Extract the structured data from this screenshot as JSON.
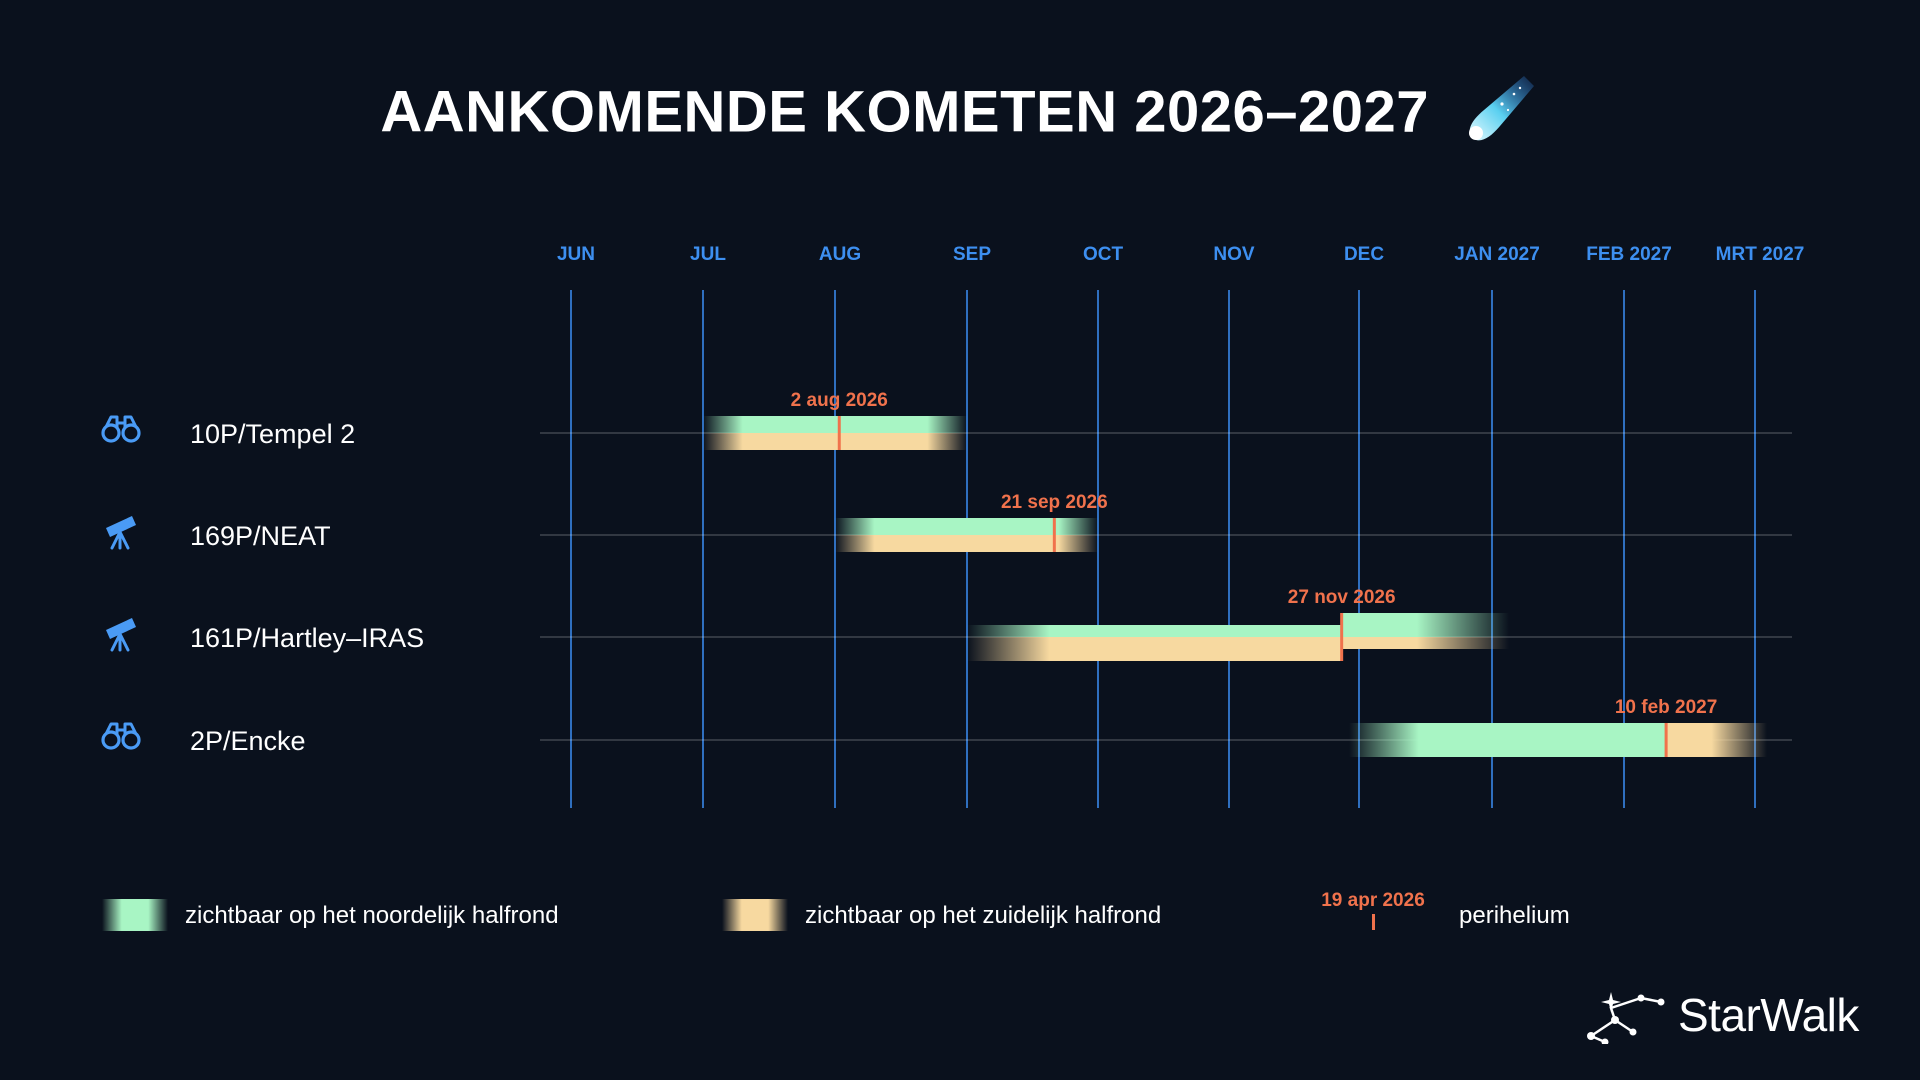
{
  "title": "AANKOMENDE KOMETEN 2026–2027",
  "chart_data": {
    "type": "gantt",
    "title": "AANKOMENDE KOMETEN 2026–2027",
    "x_axis": {
      "ticks": [
        "JUN",
        "JUL",
        "AUG",
        "SEP",
        "OCT",
        "NOV",
        "DEC",
        "JAN 2027",
        "FEB 2027",
        "MRT 2027"
      ],
      "range": [
        "2026-06-01",
        "2027-03-01"
      ],
      "position": "top"
    },
    "comets": [
      {
        "name": "10P/Tempel 2",
        "instrument": "binoculars-icon",
        "north": [
          "2026-07-01",
          "2026-09-01"
        ],
        "south": [
          "2026-07-01",
          "2026-09-01"
        ],
        "perihelion": "2026-08-02",
        "perihelion_label": "2 aug 2026"
      },
      {
        "name": "169P/NEAT",
        "instrument": "telescope-icon",
        "north": [
          "2026-08-01",
          "2026-10-01"
        ],
        "south": [
          "2026-08-01",
          "2026-10-01"
        ],
        "perihelion": "2026-09-21",
        "perihelion_label": "21 sep 2026"
      },
      {
        "name": "161P/Hartley–IRAS",
        "instrument": "telescope-icon",
        "north": [
          "2026-09-01",
          "2027-01-05"
        ],
        "south": [
          "2026-09-01",
          "2027-01-05"
        ],
        "perihelion": "2026-11-27",
        "perihelion_label": "27 nov 2026"
      },
      {
        "name": "2P/Encke",
        "instrument": "binoculars-icon",
        "north": [
          "2026-12-01",
          "2027-02-10"
        ],
        "south": [
          "2027-02-10",
          "2027-03-01"
        ],
        "perihelion": "2027-02-10",
        "perihelion_label": "10 feb 2027"
      }
    ],
    "colors": {
      "north": "#a8f5c4",
      "south": "#f7d9a0",
      "perihelion": "#f0724c",
      "month_label": "#3d8ff0",
      "grid_line": "#2f6fbf"
    },
    "legend": {
      "north": "zichtbaar op het noordelijk halfrond",
      "south": "zichtbaar op het zuidelijk halfrond",
      "perihelion_example": "19 apr 2026",
      "perihelion": "perihelium",
      "placement": "bottom"
    },
    "grid": true
  },
  "brand": "StarWalk"
}
